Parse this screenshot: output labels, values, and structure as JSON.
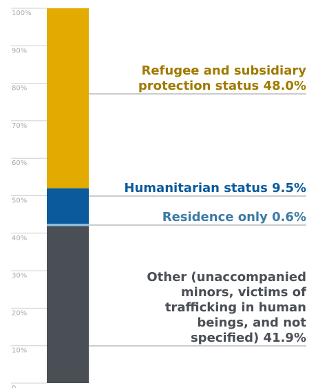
{
  "chart_data": {
    "type": "bar",
    "stacked": true,
    "orientation": "vertical",
    "ylim": [
      0,
      100
    ],
    "y_ticks": [
      "0",
      "10%",
      "20%",
      "30%",
      "40%",
      "50%",
      "60%",
      "70%",
      "80%",
      "90%",
      "100%"
    ],
    "grid": false,
    "segments": [
      {
        "key": "other",
        "value": 41.9,
        "color": "#4a4e55",
        "label_lines": [
          "Other (unaccompanied",
          "minors, victims of",
          "trafficking in human",
          "beings, and not",
          "specified) 41.9%"
        ]
      },
      {
        "key": "residence",
        "value": 0.6,
        "color": "#8fc3e3",
        "label_lines": [
          "Residence only 0.6%"
        ],
        "label_color": "#3a7ba6"
      },
      {
        "key": "humanitarian",
        "value": 9.5,
        "color": "#0a5a9c",
        "label_lines": [
          "Humanitarian status 9.5%"
        ]
      },
      {
        "key": "refugee",
        "value": 48.0,
        "color": "#e3aa00",
        "label_lines": [
          "Refugee and subsidiary",
          "protection status 48.0%"
        ],
        "label_color": "#a07a00"
      }
    ]
  }
}
